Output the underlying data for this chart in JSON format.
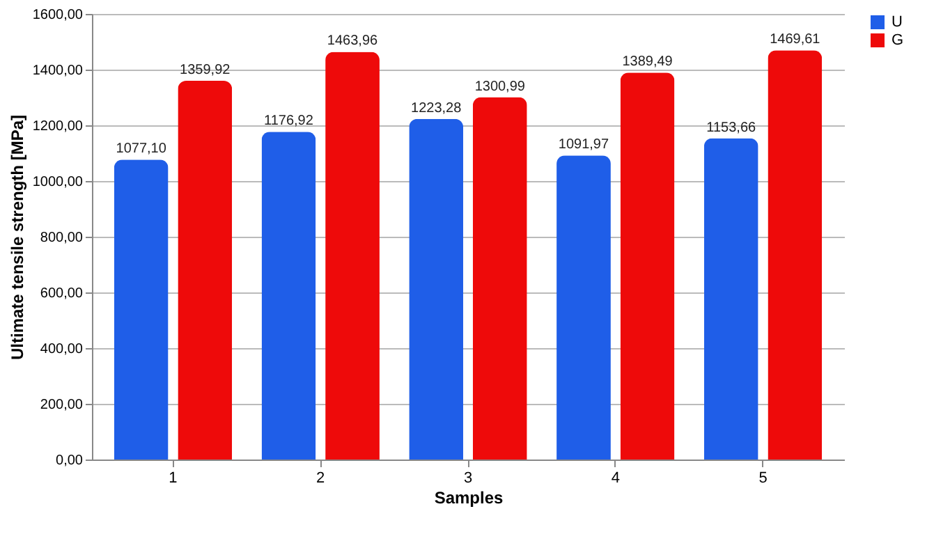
{
  "chart_data": {
    "type": "bar",
    "xlabel": "Samples",
    "ylabel": "Ultimate tensile strength [MPa]",
    "categories": [
      "1",
      "2",
      "3",
      "4",
      "5"
    ],
    "series": [
      {
        "name": "U",
        "color": "#1f5ee8",
        "values": [
          1077.1,
          1176.92,
          1223.28,
          1091.97,
          1153.66
        ],
        "value_labels": [
          "1077,10",
          "1176,92",
          "1223,28",
          "1091,97",
          "1153,66"
        ]
      },
      {
        "name": "G",
        "color": "#ee0a0a",
        "values": [
          1359.92,
          1463.96,
          1300.99,
          1389.49,
          1469.61
        ],
        "value_labels": [
          "1359,92",
          "1463,96",
          "1300,99",
          "1389,49",
          "1469,61"
        ]
      }
    ],
    "ylim": [
      0,
      1600
    ],
    "yticks": [
      {
        "value": 0,
        "label": "0,00"
      },
      {
        "value": 200,
        "label": "200,00"
      },
      {
        "value": 400,
        "label": "400,00"
      },
      {
        "value": 600,
        "label": "600,00"
      },
      {
        "value": 800,
        "label": "800,00"
      },
      {
        "value": 1000,
        "label": "1000,00"
      },
      {
        "value": 1200,
        "label": "1200,00"
      },
      {
        "value": 1400,
        "label": "1400,00"
      },
      {
        "value": 1600,
        "label": "1600,00"
      }
    ],
    "grid": "y",
    "legend": "right"
  }
}
